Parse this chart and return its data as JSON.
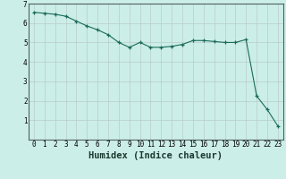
{
  "x": [
    0,
    1,
    2,
    3,
    4,
    5,
    6,
    7,
    8,
    9,
    10,
    11,
    12,
    13,
    14,
    15,
    16,
    17,
    18,
    19,
    20,
    21,
    22,
    23
  ],
  "y": [
    6.55,
    6.5,
    6.45,
    6.35,
    6.1,
    5.85,
    5.65,
    5.4,
    5.0,
    4.75,
    5.0,
    4.75,
    4.75,
    4.8,
    4.9,
    5.1,
    5.1,
    5.05,
    5.0,
    5.0,
    5.15,
    2.25,
    1.55,
    0.7
  ],
  "line_color": "#1a6b5a",
  "marker": "+",
  "marker_size": 3,
  "xlabel": "Humidex (Indice chaleur)",
  "xlim": [
    -0.5,
    23.5
  ],
  "ylim": [
    0,
    7
  ],
  "yticks": [
    1,
    2,
    3,
    4,
    5,
    6,
    7
  ],
  "xticks": [
    0,
    1,
    2,
    3,
    4,
    5,
    6,
    7,
    8,
    9,
    10,
    11,
    12,
    13,
    14,
    15,
    16,
    17,
    18,
    19,
    20,
    21,
    22,
    23
  ],
  "bg_color": "#cceee8",
  "grid_color": "#b8ccca",
  "tick_fontsize": 5.5,
  "xlabel_fontsize": 7.5
}
